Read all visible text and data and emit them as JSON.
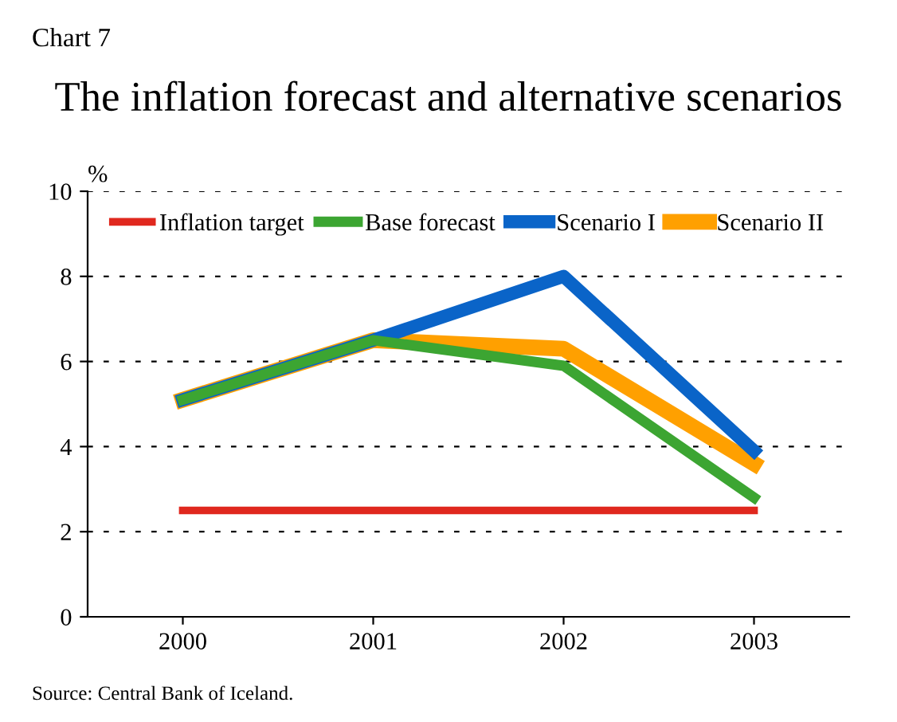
{
  "chart_data": {
    "type": "line",
    "title": "The inflation forecast and alternative scenarios",
    "ylabel": "%",
    "annotations": [
      "Chart 7",
      "Source: Central Bank of Iceland."
    ],
    "categories": [
      "2000",
      "2001",
      "2002",
      "2003"
    ],
    "series": [
      {
        "name": "Inflation target",
        "color": "#e0281e",
        "values": [
          2.5,
          2.5,
          2.5,
          2.5
        ]
      },
      {
        "name": "Base forecast",
        "color": "#3ca532",
        "values": [
          5.1,
          6.5,
          5.9,
          2.8
        ]
      },
      {
        "name": "Scenario I",
        "color": "#0a64c8",
        "values": [
          5.1,
          6.5,
          8.0,
          3.9
        ]
      },
      {
        "name": "Scenario II",
        "color": "#ffa000",
        "values": [
          5.1,
          6.5,
          6.3,
          3.6
        ]
      }
    ],
    "ylim": [
      0,
      10
    ],
    "yticks": [
      0,
      2,
      4,
      6,
      8,
      10
    ],
    "grid": "y",
    "legend": "top",
    "line_style": "solid",
    "marker": "none"
  }
}
